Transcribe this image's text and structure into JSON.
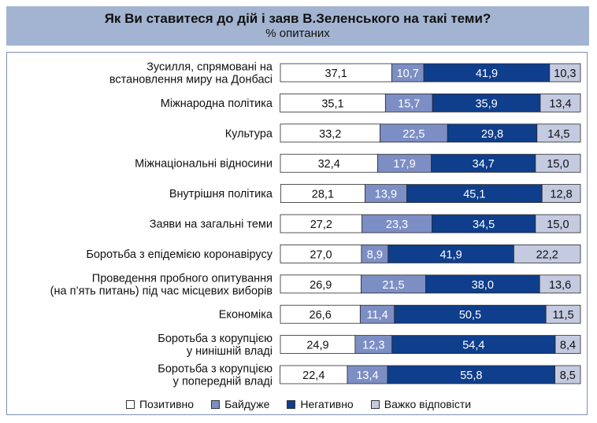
{
  "header": {
    "title": "Як Ви ставитеся до дій і заяв В.Зеленського на такі теми?",
    "subtitle": "% опитаних"
  },
  "colors": {
    "positive": "#ffffff",
    "indifferent": "#7c8ec4",
    "negative": "#0e3e8c",
    "hard_to_say": "#c4cae0",
    "header_bg": "#a3b4d2"
  },
  "legend": [
    {
      "label": "Позитивно",
      "color": "#ffffff"
    },
    {
      "label": "Байдуже",
      "color": "#7c8ec4"
    },
    {
      "label": "Негативно",
      "color": "#0e3e8c"
    },
    {
      "label": "Важко відповісти",
      "color": "#c4cae0"
    }
  ],
  "chart_data": {
    "type": "bar",
    "orientation": "horizontal",
    "stacked": true,
    "categories": [
      [
        "Зусилля, спрямовані на",
        "встановлення миру на Донбасі"
      ],
      [
        "Міжнародна політика"
      ],
      [
        "Культура"
      ],
      [
        "Міжнаціональні відносини"
      ],
      [
        "Внутрішня політика"
      ],
      [
        "Заяви на загальні теми"
      ],
      [
        "Боротьба з епідемією коронавірусу"
      ],
      [
        "Проведення пробного опитування",
        "(на п’ять питань) під час місцевих виборів"
      ],
      [
        "Економіка"
      ],
      [
        "Боротьба з корупцією",
        "у нинішній владі"
      ],
      [
        "Боротьба з корупцією",
        "у попередній владі"
      ]
    ],
    "series": [
      {
        "name": "Позитивно",
        "values": [
          "37,1",
          "35,1",
          "33,2",
          "32,4",
          "28,1",
          "27,2",
          "27,0",
          "26,9",
          "26,6",
          "24,9",
          "22,4"
        ]
      },
      {
        "name": "Байдуже",
        "values": [
          "10,7",
          "15,7",
          "22,5",
          "17,9",
          "13,9",
          "23,3",
          "8,9",
          "21,5",
          "11,4",
          "12,3",
          "13,4"
        ]
      },
      {
        "name": "Негативно",
        "values": [
          "41,9",
          "35,9",
          "29,8",
          "34,7",
          "45,1",
          "34,5",
          "41,9",
          "38,0",
          "50,5",
          "54,4",
          "55,8"
        ]
      },
      {
        "name": "Важко відповісти",
        "values": [
          "10,3",
          "13,4",
          "14,5",
          "15,0",
          "12,8",
          "15,0",
          "22,2",
          "13,6",
          "11,5",
          "8,4",
          "8,5"
        ]
      }
    ]
  }
}
